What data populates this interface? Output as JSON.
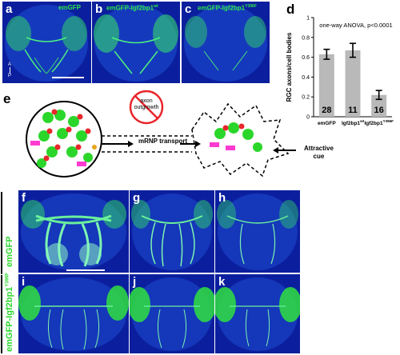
{
  "top_panels": [
    {
      "letter": "a",
      "title": "emGFP"
    },
    {
      "letter": "b",
      "title": "emGFP-Igf2bp1",
      "title_sup": "wt"
    },
    {
      "letter": "c",
      "title": "emGFP-Igf2bp1",
      "title_sup": "Y396F"
    }
  ],
  "axis_marker": {
    "top": "A",
    "bottom": "P"
  },
  "panel_d": {
    "letter": "d"
  },
  "panel_e": {
    "letter": "e",
    "no_outgrowth_label": [
      "axon",
      "outgrowth"
    ],
    "transport_label": "mRNP transport",
    "cue_label": [
      "Attractive",
      "cue"
    ]
  },
  "bottom_panels": [
    {
      "letter": "f"
    },
    {
      "letter": "g"
    },
    {
      "letter": "h"
    },
    {
      "letter": "i"
    },
    {
      "letter": "j"
    },
    {
      "letter": "k"
    }
  ],
  "row_labels": {
    "row1": "emGFP",
    "row2": "emGFP-Igf2bp1",
    "row2_sup": "Y396F"
  },
  "colors": {
    "panel_bg": "#0b1f9e",
    "gfp": "#3fe06a",
    "bar": "#b9b9b9",
    "error_bar": "#000000",
    "granule": "#2bd62b",
    "rna": "#e8262b",
    "protein": "#ff3ad0"
  },
  "chart_data": {
    "type": "bar",
    "title": "one-way ANOVA, p<0.0001",
    "xlabel": "",
    "ylabel": "RGC axons/cell bodies",
    "ylim": [
      0,
      1
    ],
    "yticks": [
      0,
      0.2,
      0.4,
      0.6,
      0.8,
      1
    ],
    "ytick_labels": [
      "0",
      "0.2",
      "0.4",
      "0.6",
      "0.8",
      "1"
    ],
    "categories": [
      "emGFP",
      "Igf2bp1",
      "Igf2bp1"
    ],
    "category_sups": [
      "",
      "wt",
      "Y396F"
    ],
    "values": [
      0.63,
      0.67,
      0.22
    ],
    "errors": [
      0.05,
      0.07,
      0.045
    ],
    "n_labels": [
      "28",
      "11",
      "16"
    ]
  }
}
